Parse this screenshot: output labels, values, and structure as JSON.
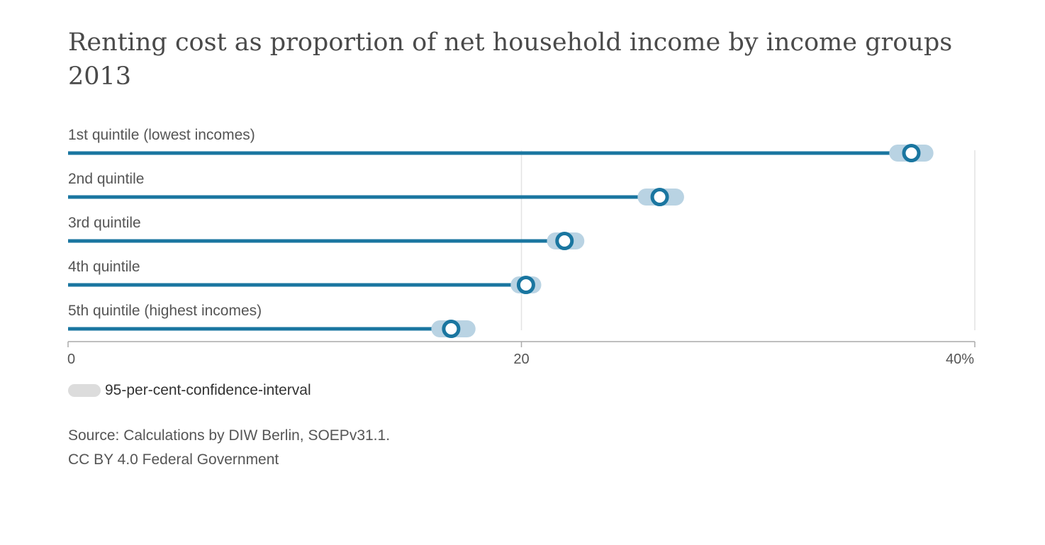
{
  "chart_data": {
    "type": "dot",
    "title_lines": [
      "Renting cost as proportion of net household income by income groups",
      "2013"
    ],
    "categories": [
      "1st quintile (lowest incomes)",
      "2nd quintile",
      "3rd quintile",
      "4th quintile",
      "5th quintile (highest incomes)"
    ],
    "values": [
      37.2,
      26.1,
      21.9,
      20.2,
      16.9
    ],
    "ci": [
      [
        36.6,
        37.8
      ],
      [
        25.5,
        26.8
      ],
      [
        21.5,
        22.4
      ],
      [
        19.9,
        20.5
      ],
      [
        16.4,
        17.6
      ]
    ],
    "xlim": [
      0,
      40
    ],
    "xticks": [
      0,
      20,
      40
    ],
    "xtick_labels": [
      "0",
      "20",
      "40%"
    ],
    "grid": true,
    "legend": {
      "placement": "bottom-left",
      "label": "95-per-cent-confidence-interval"
    },
    "colors": {
      "bar": "#1a76a0",
      "ci": "#b9d3e3",
      "grid": "#e3e3e3",
      "axis": "#aaaaaa",
      "legend_swatch": "#dcdcdc"
    }
  },
  "footer": {
    "source": "Source: Calculations by DIW Berlin, SOEPv31.1.",
    "license": "CC BY 4.0 Federal Government"
  }
}
